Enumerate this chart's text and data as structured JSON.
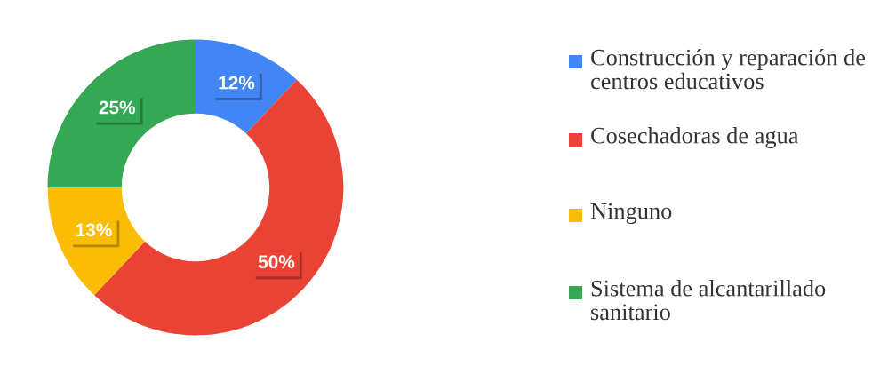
{
  "chart_data": {
    "type": "donut",
    "categories": [
      "Construcción y reparación de centros educativos",
      "Cosechadoras de agua",
      "Ninguno",
      "Sistema de alcantarillado sanitario"
    ],
    "values": [
      12,
      50,
      13,
      25
    ],
    "colors": [
      "#4285f4",
      "#ea4335",
      "#fbbc04",
      "#34a853"
    ],
    "value_labels": [
      "12%",
      "50%",
      "13%",
      "25%"
    ],
    "legend": "right"
  }
}
